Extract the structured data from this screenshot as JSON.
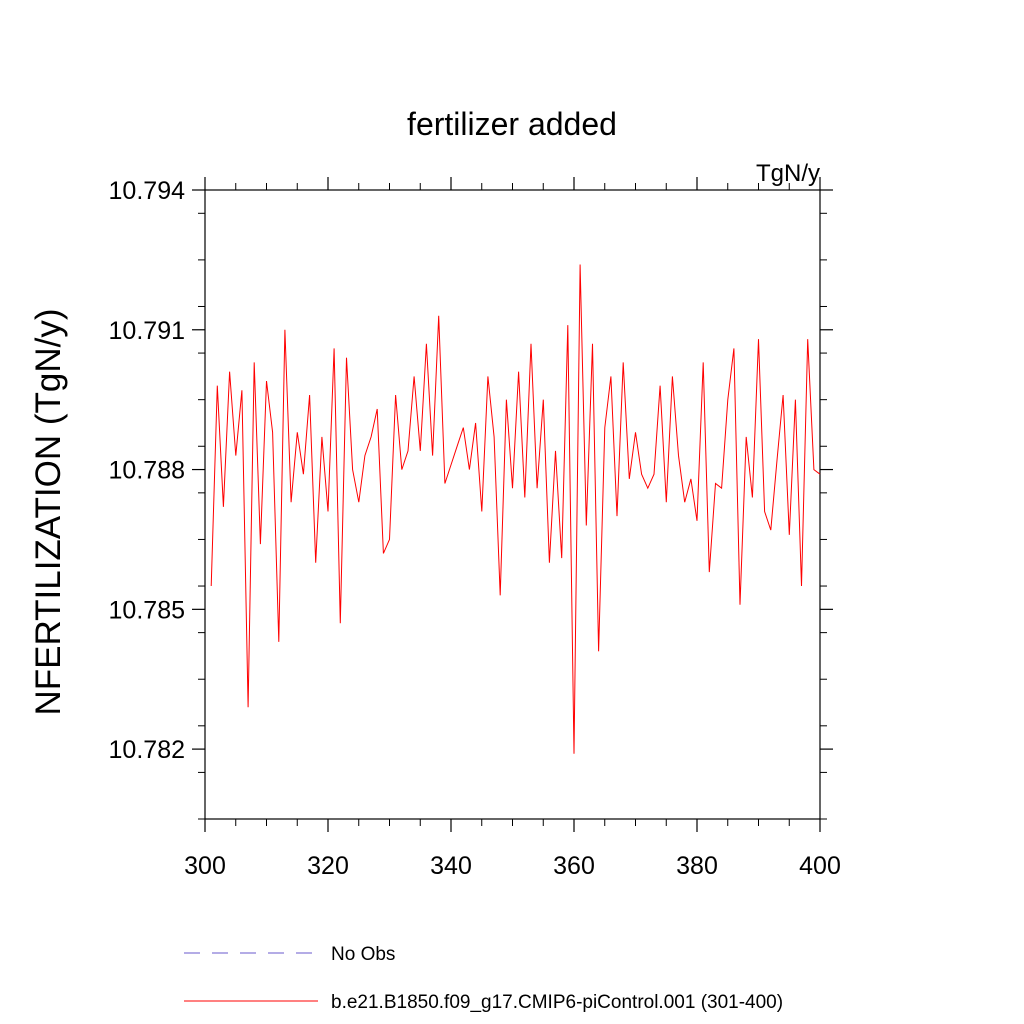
{
  "chart_data": {
    "type": "line",
    "title": "fertilizer added",
    "units_label": "TgN/y",
    "ylabel": "NFERTILIZATION  (TgN/y)",
    "xlabel": "",
    "xlim": [
      300,
      400
    ],
    "ylim": [
      10.7805,
      10.794
    ],
    "x_ticks": [
      300,
      320,
      340,
      360,
      380,
      400
    ],
    "x_tick_labels": [
      "300",
      "320",
      "340",
      "360",
      "380",
      "400"
    ],
    "y_ticks": [
      10.782,
      10.785,
      10.788,
      10.791,
      10.794
    ],
    "y_tick_labels": [
      "10.782",
      "10.785",
      "10.788",
      "10.791",
      "10.794"
    ],
    "grid": false,
    "legend_placement": "bottom",
    "series": [
      {
        "name": "b.e21.B1850.f09_g17.CMIP6-piControl.001 (301-400)",
        "color": "#ff0000",
        "style": "solid",
        "x": [
          301,
          302,
          303,
          304,
          305,
          306,
          307,
          308,
          309,
          310,
          311,
          312,
          313,
          314,
          315,
          316,
          317,
          318,
          319,
          320,
          321,
          322,
          323,
          324,
          325,
          326,
          327,
          328,
          329,
          330,
          331,
          332,
          333,
          334,
          335,
          336,
          337,
          338,
          339,
          340,
          341,
          342,
          343,
          344,
          345,
          346,
          347,
          348,
          349,
          350,
          351,
          352,
          353,
          354,
          355,
          356,
          357,
          358,
          359,
          360,
          361,
          362,
          363,
          364,
          365,
          366,
          367,
          368,
          369,
          370,
          371,
          372,
          373,
          374,
          375,
          376,
          377,
          378,
          379,
          380,
          381,
          382,
          383,
          384,
          385,
          386,
          387,
          388,
          389,
          390,
          391,
          392,
          393,
          394,
          395,
          396,
          397,
          398,
          399,
          400
        ],
        "y": [
          10.7855,
          10.7898,
          10.7872,
          10.7901,
          10.7883,
          10.7897,
          10.7829,
          10.7903,
          10.7864,
          10.7899,
          10.7888,
          10.7843,
          10.791,
          10.7873,
          10.7888,
          10.7879,
          10.7896,
          10.786,
          10.7887,
          10.7871,
          10.7906,
          10.7847,
          10.7904,
          10.788,
          10.7873,
          10.7883,
          10.7887,
          10.7893,
          10.7862,
          10.7865,
          10.7896,
          10.788,
          10.7884,
          10.79,
          10.7884,
          10.7907,
          10.7883,
          10.7913,
          10.7877,
          10.7881,
          10.7885,
          10.7889,
          10.788,
          10.789,
          10.7871,
          10.79,
          10.7887,
          10.7853,
          10.7895,
          10.7876,
          10.7901,
          10.7874,
          10.7907,
          10.7876,
          10.7895,
          10.786,
          10.7884,
          10.7861,
          10.7911,
          10.7819,
          10.7924,
          10.7868,
          10.7907,
          10.7841,
          10.7889,
          10.79,
          10.787,
          10.7903,
          10.7878,
          10.7888,
          10.7879,
          10.7876,
          10.7879,
          10.7898,
          10.7873,
          10.79,
          10.7883,
          10.7873,
          10.7878,
          10.7869,
          10.7903,
          10.7858,
          10.7877,
          10.7876,
          10.7895,
          10.7906,
          10.7851,
          10.7887,
          10.7874,
          10.7908,
          10.7871,
          10.7867,
          10.7882,
          10.7896,
          10.7866,
          10.7895,
          10.7855,
          10.7908,
          10.788,
          10.7879
        ]
      }
    ],
    "legend": [
      {
        "label": "No Obs",
        "color": "#6a5acd",
        "style": "dashed"
      },
      {
        "label": "b.e21.B1850.f09_g17.CMIP6-piControl.001 (301-400)",
        "color": "#ff0000",
        "style": "solid"
      }
    ]
  }
}
